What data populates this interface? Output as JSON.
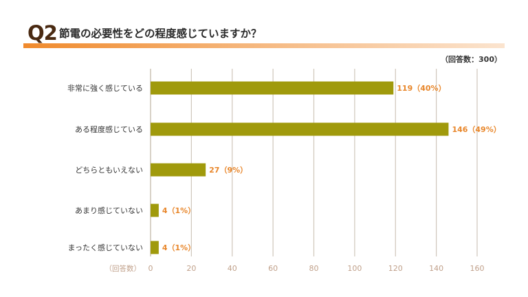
{
  "header": {
    "question_number": "Q2",
    "title": "節電の必要性をどの程度感じていますか？",
    "respondents": "（回答数：300）"
  },
  "colors": {
    "bar": "#a09a0c",
    "value_label": "#e8862a",
    "category_label": "#333333",
    "axis_label": "#c0a08a",
    "grid": "#cfc6ba",
    "accent": "#f08a2c"
  },
  "chart_data": {
    "type": "bar",
    "orientation": "horizontal",
    "title": "節電の必要性をどの程度感じていますか？",
    "xlabel": "（回答数）",
    "xlim": [
      0,
      160
    ],
    "xticks": [
      0,
      20,
      40,
      60,
      80,
      100,
      120,
      140,
      160
    ],
    "grid": true,
    "categories": [
      "非常に強く感じている",
      "ある程度感じている",
      "どちらともいえない",
      "あまり感じていない",
      "まったく感じていない"
    ],
    "values": [
      119,
      146,
      27,
      4,
      4
    ],
    "value_labels": [
      "119（40%）",
      "146（49%）",
      "27（9%）",
      "4（1%）",
      "4（1%）"
    ]
  }
}
